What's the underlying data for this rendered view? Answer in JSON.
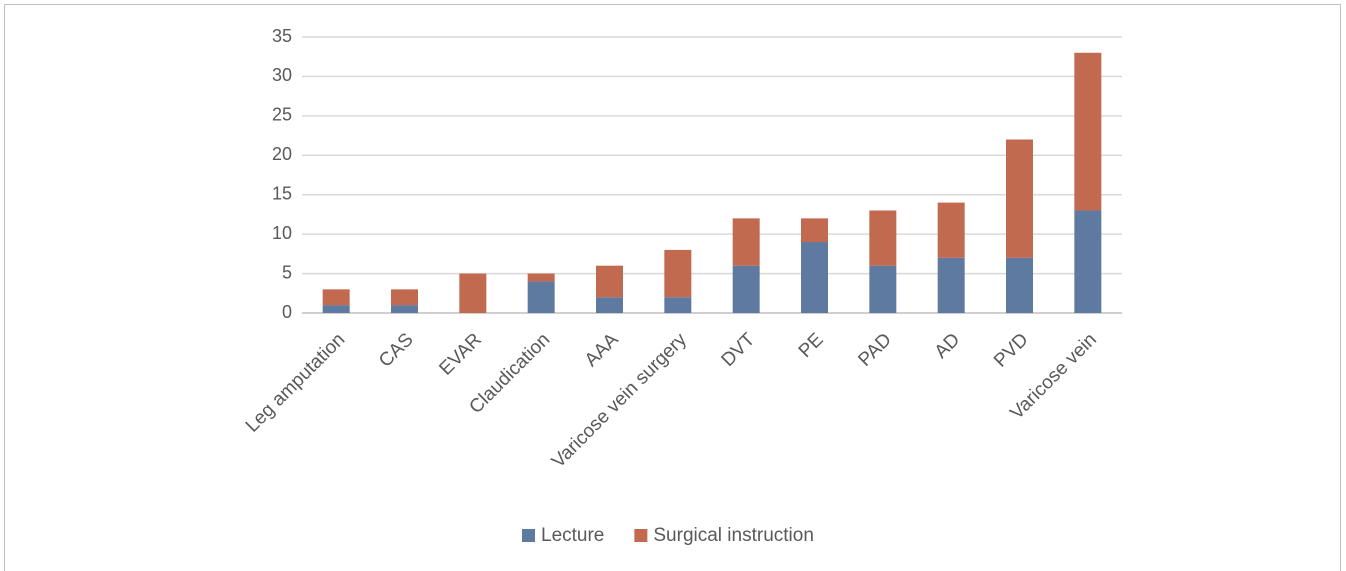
{
  "chart_data": {
    "type": "stacked_bar",
    "categories": [
      "Leg amputation",
      "CAS",
      "EVAR",
      "Claudication",
      "AAA",
      "Varicose vein surgery",
      "DVT",
      "PE",
      "PAD",
      "AD",
      "PVD",
      "Varicose vein"
    ],
    "series": [
      {
        "name": "Lecture",
        "color": "#5e7aa0",
        "values": [
          1,
          1,
          0,
          4,
          2,
          2,
          6,
          9,
          6,
          7,
          7,
          13
        ]
      },
      {
        "name": "Surgical instruction",
        "color": "#c16a50",
        "values": [
          2,
          2,
          5,
          1,
          4,
          6,
          6,
          3,
          7,
          7,
          15,
          20
        ]
      }
    ],
    "ylim": [
      0,
      35
    ],
    "yticks": [
      0,
      5,
      10,
      15,
      20,
      25,
      30,
      35
    ],
    "grid": true,
    "legend": "bottom"
  }
}
